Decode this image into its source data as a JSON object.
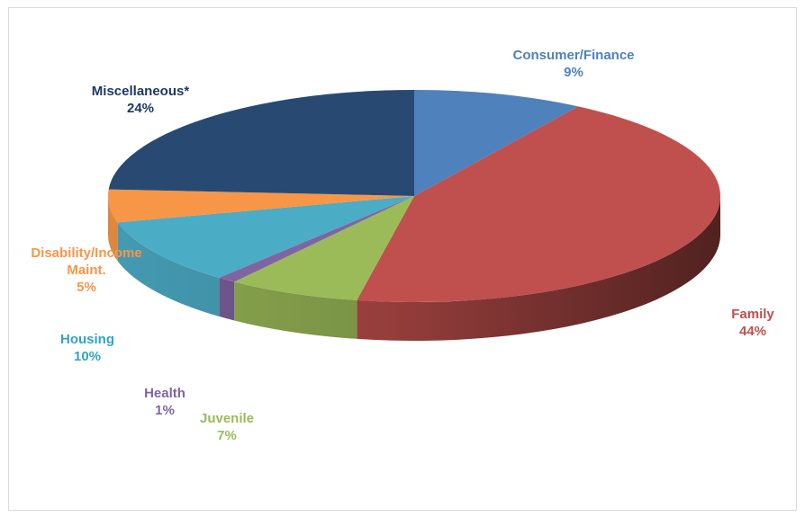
{
  "chart_data": {
    "type": "pie",
    "three_d": true,
    "title": "",
    "slices": [
      {
        "name": "Consumer/Finance",
        "value": 9,
        "pct_label": "9%",
        "color": "#4f81bd",
        "label_color": "#4f81bd"
      },
      {
        "name": "Family",
        "value": 44,
        "pct_label": "44%",
        "color": "#c0504d",
        "label_color": "#c0504d"
      },
      {
        "name": "Juvenile",
        "value": 7,
        "pct_label": "7%",
        "color": "#9bbb59",
        "label_color": "#9bbb59"
      },
      {
        "name": "Health",
        "value": 1,
        "pct_label": "1%",
        "color": "#8064a2",
        "label_color": "#8064a2"
      },
      {
        "name": "Housing",
        "value": 10,
        "pct_label": "10%",
        "color": "#4bacc6",
        "label_color": "#31a3c4"
      },
      {
        "name": "Disability/Income Maint.",
        "value": 5,
        "pct_label": "5%",
        "color": "#f79646",
        "label_color": "#f79646"
      },
      {
        "name": "Miscellaneous*",
        "value": 24,
        "pct_label": "24%",
        "color": "#284a72",
        "label_color": "#1f3864"
      }
    ]
  },
  "slice_labels": [
    {
      "lines": [
        "Consumer/Finance"
      ],
      "pct": "9%"
    },
    {
      "lines": [
        "Family"
      ],
      "pct": "44%"
    },
    {
      "lines": [
        "Juvenile"
      ],
      "pct": "7%"
    },
    {
      "lines": [
        "Health"
      ],
      "pct": "1%"
    },
    {
      "lines": [
        "Housing"
      ],
      "pct": "10%"
    },
    {
      "lines": [
        "Disability/Income",
        "Maint."
      ],
      "pct": "5%"
    },
    {
      "lines": [
        "Miscellaneous*"
      ],
      "pct": "24%"
    }
  ]
}
